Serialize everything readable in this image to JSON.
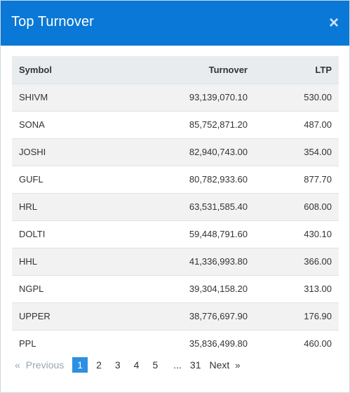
{
  "modal": {
    "title": "Top Turnover",
    "close_icon": "×"
  },
  "table": {
    "headers": {
      "symbol": "Symbol",
      "turnover": "Turnover",
      "ltp": "LTP"
    },
    "rows": [
      {
        "symbol": "SHIVM",
        "turnover": "93,139,070.10",
        "ltp": "530.00"
      },
      {
        "symbol": "SONA",
        "turnover": "85,752,871.20",
        "ltp": "487.00"
      },
      {
        "symbol": "JOSHI",
        "turnover": "82,940,743.00",
        "ltp": "354.00"
      },
      {
        "symbol": "GUFL",
        "turnover": "80,782,933.60",
        "ltp": "877.70"
      },
      {
        "symbol": "HRL",
        "turnover": "63,531,585.40",
        "ltp": "608.00"
      },
      {
        "symbol": "DOLTI",
        "turnover": "59,448,791.60",
        "ltp": "430.10"
      },
      {
        "symbol": "HHL",
        "turnover": "41,336,993.80",
        "ltp": "366.00"
      },
      {
        "symbol": "NGPL",
        "turnover": "39,304,158.20",
        "ltp": "313.00"
      },
      {
        "symbol": "UPPER",
        "turnover": "38,776,697.90",
        "ltp": "176.90"
      },
      {
        "symbol": "PPL",
        "turnover": "35,836,499.80",
        "ltp": "460.00"
      }
    ]
  },
  "pagination": {
    "prev_arrow": "«",
    "prev_label": "Previous",
    "pages": [
      "1",
      "2",
      "3",
      "4",
      "5"
    ],
    "active_page": "1",
    "ellipsis": "...",
    "last_page": "31",
    "next_label": "Next",
    "next_arrow": "»"
  }
}
